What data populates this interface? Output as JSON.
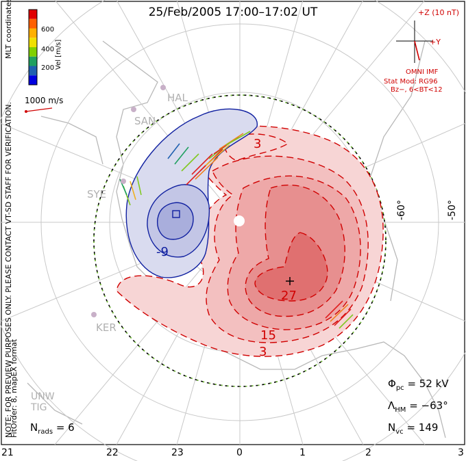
{
  "title": "25/Feb/2005 17:00–17:02 UT",
  "colorbar": {
    "label": "Vel [m/s]",
    "ticks": [
      "600",
      "400",
      "200"
    ],
    "colors": [
      "#e00000",
      "#ff6000",
      "#ffb000",
      "#f0e000",
      "#80d000",
      "#20a060",
      "#2060b0",
      "#0000e0"
    ]
  },
  "coords_label": "MLT coordinates",
  "scale_vector_label": "1000 m/s",
  "side_note_1": "NOTE: FOR PREVIEW PURPOSES ONLY. PLEASE CONTACT VT-SD STAFF FOR VERIFICATION.",
  "side_note_2": "FitOrder: 8, mapEX format",
  "imf": {
    "z_label": "+Z (10 nT)",
    "y_label": "+Y",
    "source": "OMNI IMF",
    "model_line1": "Stat Mod: RG96",
    "model_line2": "Bz−, 6<BT<12"
  },
  "latitude_labels": [
    "-60°",
    "-50°"
  ],
  "mlt_labels": [
    "21",
    "22",
    "23",
    "0",
    "1",
    "2",
    "3"
  ],
  "sites": [
    "HAL",
    "SAN",
    "SYE",
    "KER",
    "UNW",
    "TIG"
  ],
  "contour_labels": {
    "neg": "-9",
    "pos_inner": "27",
    "pos_mid": "15",
    "pos_outer": "3",
    "pos_top": "3"
  },
  "stats": {
    "phi_symbol": "Φ",
    "phi_sub": "pc",
    "phi_value": "= 52 kV",
    "lambda_symbol": "Λ",
    "lambda_sub": "HM",
    "lambda_value": "= −63°",
    "nvc_symbol": "N",
    "nvc_sub": "vc",
    "nvc_value": "= 149",
    "nrads_symbol": "N",
    "nrads_sub": "rads",
    "nrads_value": "= 6"
  }
}
